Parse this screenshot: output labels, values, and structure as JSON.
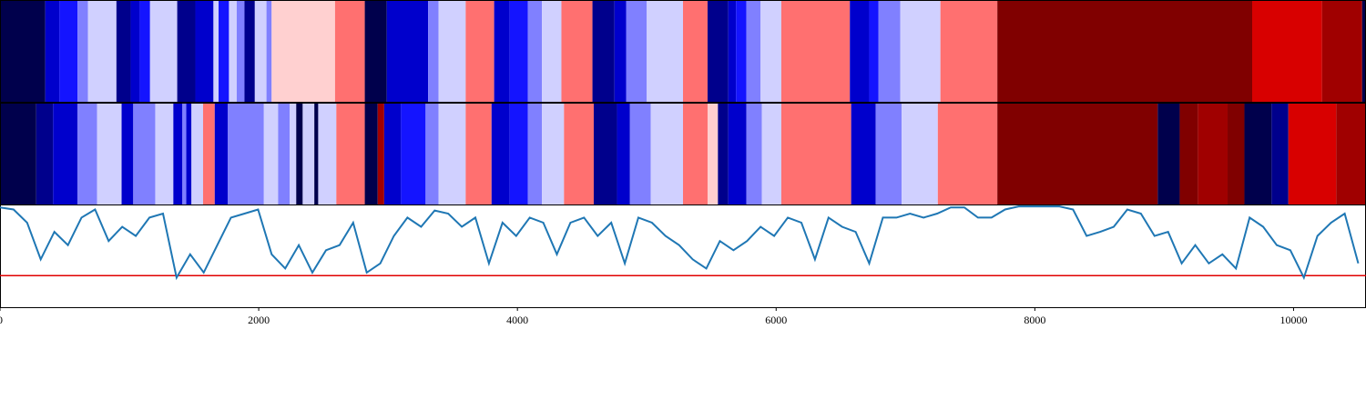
{
  "chart_data": {
    "type": "segments_line",
    "xlim": [
      0,
      10560
    ],
    "xticks": [
      0,
      2000,
      4000,
      6000,
      8000,
      10000
    ],
    "rows": [
      {
        "boundaries": [
          0,
          350,
          460,
          600,
          680,
          900,
          1010,
          1080,
          1160,
          1370,
          1510,
          1650,
          1690,
          1770,
          1830,
          1890,
          1970,
          2060,
          2100,
          2590,
          2820,
          2990,
          3310,
          3390,
          3600,
          3820,
          3940,
          4080,
          4190,
          4340,
          4580,
          4750,
          4840,
          5000,
          5280,
          5470,
          5630,
          5690,
          5770,
          5880,
          6040,
          6570,
          6720,
          6790,
          6960,
          7270,
          7710,
          9680,
          10220,
          10530,
          10560
        ],
        "colors": [
          "#00004c",
          "#0000cc",
          "#1414ff",
          "#8080ff",
          "#d0d0ff",
          "#00008c",
          "#0000cc",
          "#1414ff",
          "#d0d0ff",
          "#00008c",
          "#0000cc",
          "#d0d0ff",
          "#1414ff",
          "#d0d0ff",
          "#8080ff",
          "#00008c",
          "#d0d0ff",
          "#8080ff",
          "#ffd0d0",
          "#ff7070",
          "#00004c",
          "#0000cc",
          "#8080ff",
          "#d0d0ff",
          "#ff7070",
          "#0000cc",
          "#1414ff",
          "#8080ff",
          "#d0d0ff",
          "#ff7070",
          "#00008c",
          "#0000cc",
          "#8080ff",
          "#d0d0ff",
          "#ff7070",
          "#00008c",
          "#0000cc",
          "#1414ff",
          "#8080ff",
          "#d0d0ff",
          "#ff7070",
          "#0000cc",
          "#1414ff",
          "#8080ff",
          "#d0d0ff",
          "#ff7070",
          "#800000",
          "#d80000",
          "#a00000",
          "#00004c"
        ]
      },
      {
        "boundaries": [
          0,
          280,
          410,
          600,
          750,
          940,
          1030,
          1200,
          1340,
          1410,
          1440,
          1480,
          1570,
          1660,
          1760,
          2040,
          2150,
          2240,
          2290,
          2340,
          2430,
          2460,
          2600,
          2820,
          2920,
          2970,
          3100,
          3290,
          3390,
          3600,
          3800,
          3940,
          4080,
          4190,
          4360,
          4590,
          4770,
          4870,
          5030,
          5280,
          5470,
          5550,
          5630,
          5770,
          5890,
          6040,
          6580,
          6770,
          6970,
          7250,
          7710,
          8950,
          9120,
          9260,
          9490,
          9620,
          9830,
          9960,
          10330,
          10560
        ],
        "colors": [
          "#00004c",
          "#00008c",
          "#0000cc",
          "#8080ff",
          "#d0d0ff",
          "#0000cc",
          "#8080ff",
          "#d0d0ff",
          "#0000cc",
          "#8080ff",
          "#0000cc",
          "#d0d0ff",
          "#ff7070",
          "#0000cc",
          "#8080ff",
          "#d0d0ff",
          "#8080ff",
          "#d0d0ff",
          "#00004c",
          "#d0d0ff",
          "#00004c",
          "#d0d0ff",
          "#ff7070",
          "#00004c",
          "#a00000",
          "#0000cc",
          "#1414ff",
          "#8080ff",
          "#d0d0ff",
          "#ff7070",
          "#0000cc",
          "#1414ff",
          "#8080ff",
          "#d0d0ff",
          "#ff7070",
          "#00008c",
          "#0000cc",
          "#8080ff",
          "#d0d0ff",
          "#ff7070",
          "#ffd0d0",
          "#00008c",
          "#0000cc",
          "#8080ff",
          "#d0d0ff",
          "#ff7070",
          "#0000cc",
          "#8080ff",
          "#d0d0ff",
          "#ff7070",
          "#800000",
          "#00004c",
          "#800000",
          "#a00000",
          "#800000",
          "#00004c",
          "#00008c",
          "#d80000",
          "#a00000"
        ]
      }
    ],
    "x": [
      0,
      105,
      210,
      315,
      420,
      525,
      630,
      735,
      840,
      945,
      1050,
      1155,
      1260,
      1365,
      1470,
      1575,
      1680,
      1785,
      1890,
      1995,
      2100,
      2205,
      2310,
      2415,
      2520,
      2625,
      2730,
      2835,
      2940,
      3045,
      3150,
      3255,
      3360,
      3465,
      3570,
      3675,
      3780,
      3885,
      3990,
      4095,
      4200,
      4305,
      4410,
      4515,
      4620,
      4725,
      4830,
      4935,
      5040,
      5145,
      5250,
      5355,
      5460,
      5565,
      5670,
      5775,
      5880,
      5985,
      6090,
      6195,
      6300,
      6405,
      6510,
      6615,
      6720,
      6825,
      6930,
      7035,
      7140,
      7245,
      7350,
      7455,
      7560,
      7665,
      7770,
      7875,
      7980,
      8085,
      8190,
      8295,
      8400,
      8505,
      8610,
      8715,
      8820,
      8925,
      9030,
      9135,
      9240,
      9345,
      9450,
      9555,
      9660,
      9765,
      9870,
      9975,
      10080,
      10185,
      10290,
      10395,
      10500
    ],
    "series": [
      {
        "color": "#1f77b4",
        "values": [
          0.98,
          0.96,
          0.83,
          0.47,
          0.74,
          0.61,
          0.88,
          0.96,
          0.65,
          0.79,
          0.7,
          0.88,
          0.92,
          0.29,
          0.52,
          0.34,
          0.61,
          0.88,
          0.92,
          0.96,
          0.52,
          0.38,
          0.61,
          0.34,
          0.56,
          0.61,
          0.83,
          0.34,
          0.43,
          0.7,
          0.88,
          0.79,
          0.95,
          0.92,
          0.79,
          0.88,
          0.43,
          0.83,
          0.7,
          0.88,
          0.83,
          0.52,
          0.83,
          0.88,
          0.7,
          0.83,
          0.43,
          0.88,
          0.83,
          0.7,
          0.61,
          0.47,
          0.38,
          0.65,
          0.56,
          0.65,
          0.79,
          0.7,
          0.88,
          0.83,
          0.47,
          0.88,
          0.79,
          0.74,
          0.43,
          0.88,
          0.88,
          0.92,
          0.88,
          0.92,
          0.98,
          0.98,
          0.88,
          0.88,
          0.96,
          0.99,
          0.99,
          0.99,
          0.99,
          0.96,
          0.7,
          0.74,
          0.79,
          0.96,
          0.92,
          0.7,
          0.74,
          0.43,
          0.61,
          0.43,
          0.52,
          0.38,
          0.88,
          0.79,
          0.61,
          0.56,
          0.29,
          0.7,
          0.83,
          0.92,
          0.43
        ]
      }
    ],
    "ylim": [
      0,
      1
    ],
    "hline": 0.31,
    "hline_color": "#e00000"
  }
}
